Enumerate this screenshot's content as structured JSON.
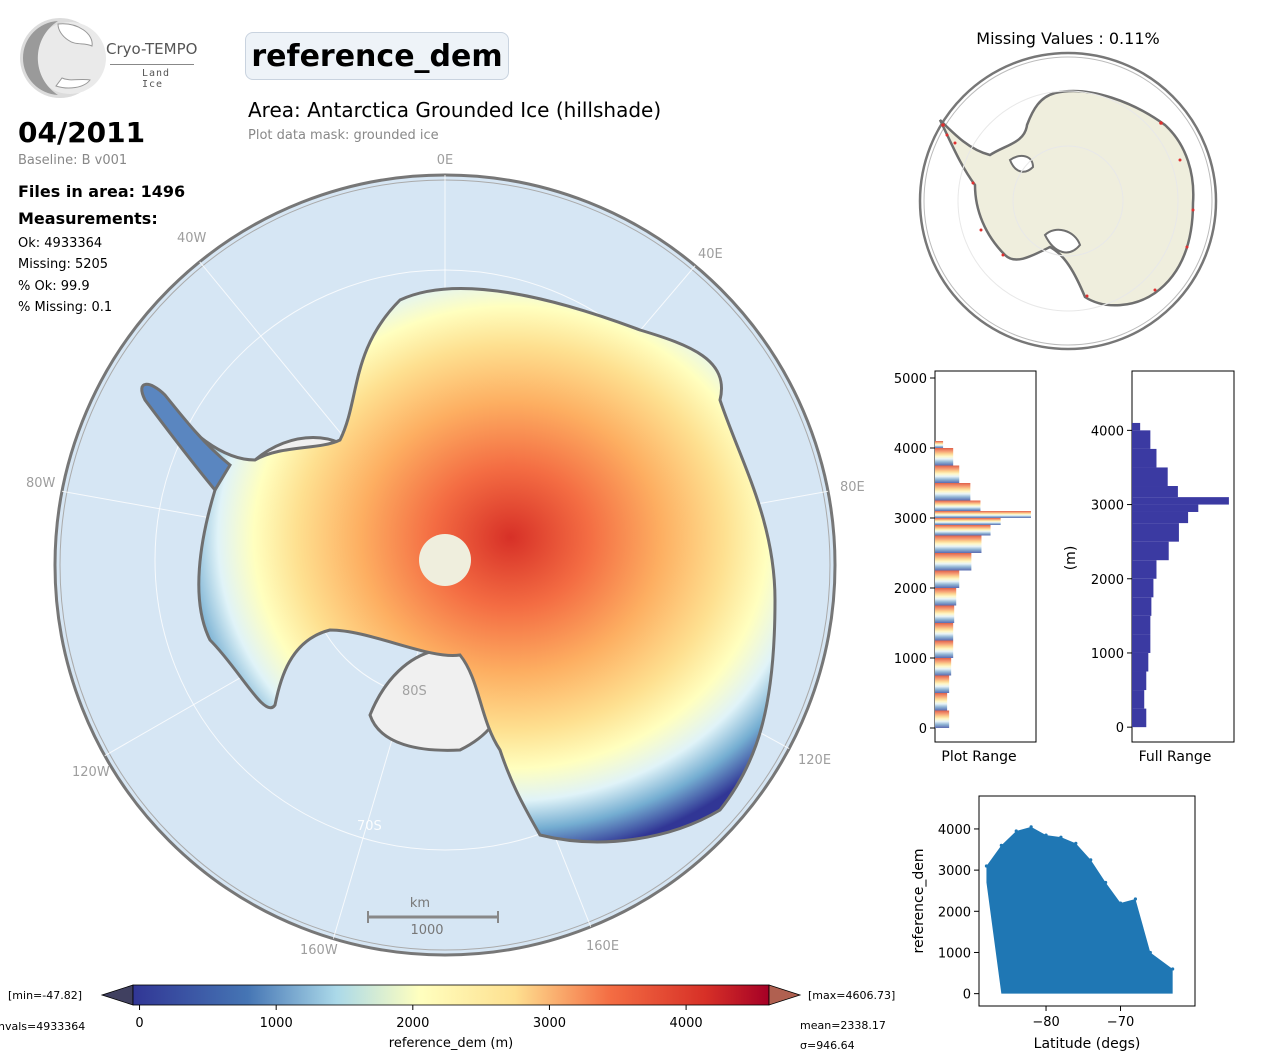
{
  "logo": {
    "name": "Cryo-TEMPO",
    "subtitle": "Land Ice"
  },
  "title": "reference_dem",
  "area_title": "Area: Antarctica Grounded Ice (hillshade)",
  "mask_text": "Plot data mask: grounded ice",
  "date": "04/2011",
  "baseline": "Baseline: B v001",
  "files_in_area": "Files in area: 1496",
  "measurements": {
    "heading": "Measurements:",
    "ok": "Ok: 4933364",
    "missing": "Missing: 5205",
    "pct_ok": "% Ok: 99.9",
    "pct_missing": "% Missing: 0.1"
  },
  "map": {
    "lon_labels": [
      "0E",
      "40E",
      "80E",
      "120E",
      "160E",
      "160W",
      "120W",
      "80W",
      "40W"
    ],
    "lat_labels": [
      "80S",
      "70S"
    ],
    "scalebar_unit": "km",
    "scalebar_value": "1000"
  },
  "colorbar": {
    "label": "reference_dem (m)",
    "ticks": [
      "0",
      "1000",
      "2000",
      "3000",
      "4000"
    ],
    "min_text": "[min=-47.82]",
    "max_text": "[max=4606.73]",
    "nvals_text": "nvals=4933364",
    "mean_text": "mean=2338.17",
    "sigma_text": "σ=946.64"
  },
  "inset": {
    "title": "Missing Values : 0.11%"
  },
  "colors": {
    "ocean": "#d6e6f4",
    "land": "#efeedd",
    "coast": "#6f6f6f",
    "hist_full": "#3b3aa2",
    "scatter": "#1f77b4",
    "missing": "#e03030"
  },
  "chart_data": [
    {
      "type": "bar",
      "orientation": "horizontal",
      "xlabel": "Plot Range",
      "ylabel": "",
      "ylim": [
        -200,
        5100
      ],
      "yticks": [
        0,
        1000,
        2000,
        3000,
        4000,
        5000
      ],
      "bins": [
        0,
        250,
        500,
        750,
        1000,
        1250,
        1500,
        1750,
        2000,
        2250,
        2500,
        2750,
        2900,
        3000,
        3100,
        3250,
        3500,
        3750,
        4000
      ],
      "counts": [
        0.14,
        0.12,
        0.14,
        0.16,
        0.18,
        0.18,
        0.19,
        0.21,
        0.24,
        0.36,
        0.46,
        0.55,
        0.65,
        0.95,
        0.45,
        0.35,
        0.24,
        0.18,
        0.08
      ]
    },
    {
      "type": "bar",
      "orientation": "horizontal",
      "xlabel": "Full Range",
      "ylabel": "(m)",
      "ylim": [
        -200,
        4800
      ],
      "yticks": [
        0,
        1000,
        2000,
        3000,
        4000
      ],
      "bins": [
        0,
        250,
        500,
        750,
        1000,
        1250,
        1500,
        1750,
        2000,
        2250,
        2500,
        2750,
        2900,
        3000,
        3100,
        3250,
        3500,
        3750,
        4000
      ],
      "counts": [
        0.14,
        0.12,
        0.14,
        0.16,
        0.18,
        0.18,
        0.19,
        0.21,
        0.24,
        0.36,
        0.46,
        0.55,
        0.65,
        0.95,
        0.45,
        0.35,
        0.24,
        0.18,
        0.08
      ]
    },
    {
      "type": "scatter",
      "xlabel": "Latitude (degs)",
      "ylabel": "reference_dem",
      "xlim": [
        -89,
        -60
      ],
      "ylim": [
        -300,
        4800
      ],
      "xticks": [
        -80,
        -70
      ],
      "yticks": [
        0,
        1000,
        2000,
        3000,
        4000
      ],
      "upper_envelope": [
        [
          -88,
          3100
        ],
        [
          -86,
          3600
        ],
        [
          -84,
          3950
        ],
        [
          -82,
          4050
        ],
        [
          -80,
          3850
        ],
        [
          -78,
          3800
        ],
        [
          -76,
          3650
        ],
        [
          -74,
          3250
        ],
        [
          -72,
          2700
        ],
        [
          -70,
          2200
        ],
        [
          -68,
          2300
        ],
        [
          -66,
          1000
        ],
        [
          -63,
          600
        ]
      ],
      "lower_envelope": [
        [
          -88,
          2700
        ],
        [
          -86,
          0
        ],
        [
          -63,
          0
        ]
      ]
    }
  ]
}
